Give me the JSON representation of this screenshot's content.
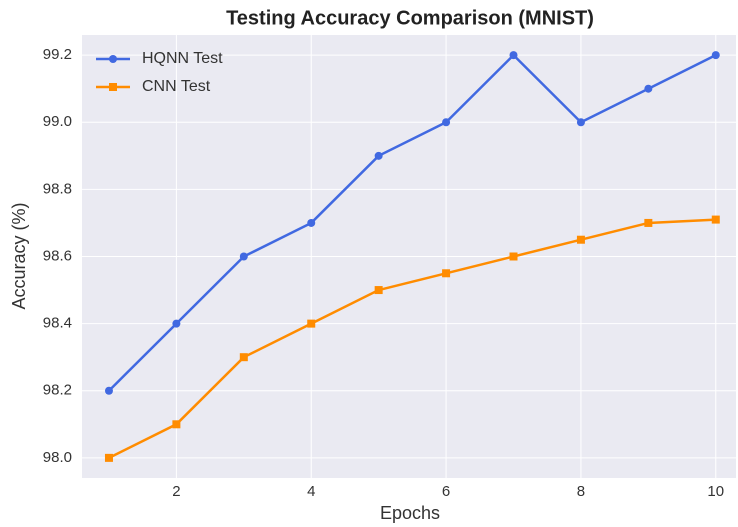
{
  "chart_data": {
    "type": "line",
    "title": "Testing Accuracy Comparison (MNIST)",
    "x_label": "Epochs",
    "y_label": "Accuracy (%)",
    "x": [
      1,
      2,
      3,
      4,
      5,
      6,
      7,
      8,
      9,
      10
    ],
    "series": [
      {
        "name": "HQNN Test",
        "color": "#4169e1",
        "marker": "circle",
        "values": [
          98.2,
          98.4,
          98.6,
          98.7,
          98.9,
          99.0,
          99.2,
          99.0,
          99.1,
          99.2
        ]
      },
      {
        "name": "CNN Test",
        "color": "#ff8c00",
        "marker": "square",
        "values": [
          98.0,
          98.1,
          98.3,
          98.4,
          98.5,
          98.55,
          98.6,
          98.65,
          98.7,
          98.71
        ]
      }
    ],
    "xlim": [
      0.6,
      10.3
    ],
    "xticks": [
      2,
      4,
      6,
      8,
      10
    ],
    "ylim": [
      97.94,
      99.26
    ],
    "yticks": [
      {
        "value": 98.0,
        "label": "98.0"
      },
      98.2,
      98.4,
      98.6,
      98.8,
      {
        "value": 99.0,
        "label": "99.0"
      },
      99.2
    ],
    "grid": true,
    "legend": "upper left"
  }
}
